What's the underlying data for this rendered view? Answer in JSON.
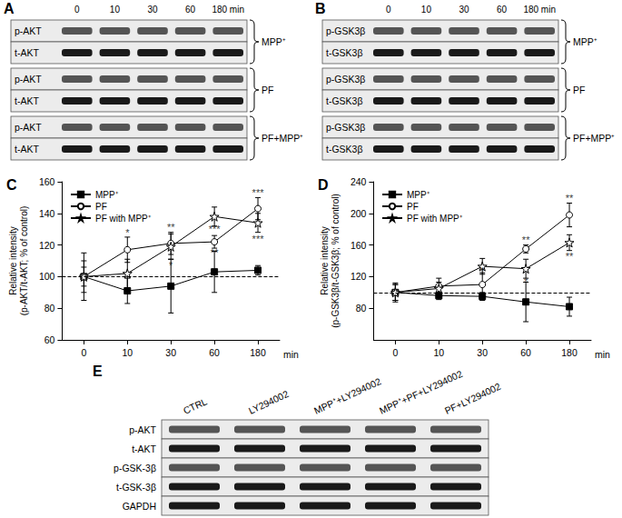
{
  "panels": {
    "A": {
      "label": "A",
      "times": [
        "0",
        "10",
        "30",
        "60",
        "180 min"
      ],
      "groups": [
        {
          "name": "MPP⁺",
          "rows": [
            "p-AKT",
            "t-AKT"
          ]
        },
        {
          "name": "PF",
          "rows": [
            "p-AKT",
            "t-AKT"
          ]
        },
        {
          "name": "PF+MPP⁺",
          "rows": [
            "p-AKT",
            "t-AKT"
          ]
        }
      ]
    },
    "B": {
      "label": "B",
      "times": [
        "0",
        "10",
        "30",
        "60",
        "180 min"
      ],
      "groups": [
        {
          "name": "MPP⁺",
          "rows": [
            "p-GSK3β",
            "t-GSK3β"
          ]
        },
        {
          "name": "PF",
          "rows": [
            "p-GSK3β",
            "t-GSK3β"
          ]
        },
        {
          "name": "PF+MPP⁺",
          "rows": [
            "p-GSK3β",
            "t-GSK3β"
          ]
        }
      ]
    },
    "E": {
      "label": "E",
      "lanes": [
        "CTRL",
        "LY294002",
        "MPP⁺+LY294002",
        "MPP⁺+PF+LY294002",
        "PF+LY294002"
      ],
      "rows": [
        "p-AKT",
        "t-AKT",
        "p-GSK-3β",
        "t-GSK-3β",
        "GAPDH"
      ]
    }
  },
  "chart_data": [
    {
      "label": "C",
      "type": "line",
      "ylabel": "Relative intensity\n(p-AKT/t-AKT; % of control)",
      "xlabel": "min",
      "categories": [
        "0",
        "10",
        "30",
        "60",
        "180"
      ],
      "ylim": [
        60,
        160
      ],
      "yticks": [
        60,
        80,
        100,
        120,
        140,
        160
      ],
      "hline": 100,
      "legend": "upper left",
      "series": [
        {
          "name": "MPP⁺",
          "color": "#000000",
          "marker": "square",
          "values": [
            100,
            91,
            94,
            103,
            104
          ],
          "errors": [
            15,
            8,
            17,
            13,
            3
          ]
        },
        {
          "name": "PF",
          "color": "#000000",
          "marker": "open circle",
          "values": [
            100,
            117,
            121,
            122,
            143
          ],
          "errors": [
            6,
            8,
            7,
            4,
            7
          ]
        },
        {
          "name": "PF with MPP⁺",
          "color": "#000000",
          "marker": "open star",
          "values": [
            100,
            102,
            119,
            138,
            134
          ],
          "errors": [
            10,
            9,
            8,
            6,
            6
          ]
        }
      ],
      "annotations": [
        {
          "x": "10",
          "y": 128,
          "text": "*"
        },
        {
          "x": "30",
          "y": 131,
          "text": "**"
        },
        {
          "x": "30",
          "y": 107,
          "text": "*"
        },
        {
          "x": "60",
          "y": 130,
          "text": "***"
        },
        {
          "x": "60",
          "y": 115,
          "text": "**"
        },
        {
          "x": "180",
          "y": 153,
          "text": "***"
        },
        {
          "x": "180",
          "y": 124,
          "text": "***"
        }
      ]
    },
    {
      "label": "D",
      "type": "line",
      "ylabel": "Relative intensity\n(p-GSK3β/t-GSK3β; % of control)",
      "xlabel": "min",
      "categories": [
        "0",
        "10",
        "30",
        "60",
        "180"
      ],
      "ylim": [
        40,
        240
      ],
      "yticks": [
        80,
        120,
        160,
        200,
        240
      ],
      "hline": 100,
      "legend": "upper left",
      "series": [
        {
          "name": "MPP⁺",
          "color": "#000000",
          "marker": "square",
          "values": [
            100,
            96,
            95,
            88,
            82
          ],
          "errors": [
            12,
            5,
            5,
            25,
            12
          ]
        },
        {
          "name": "PF",
          "color": "#000000",
          "marker": "open circle",
          "values": [
            100,
            108,
            110,
            155,
            198
          ],
          "errors": [
            10,
            10,
            15,
            5,
            15
          ]
        },
        {
          "name": "PF with MPP⁺",
          "color": "#000000",
          "marker": "open star",
          "values": [
            100,
            105,
            133,
            130,
            163
          ],
          "errors": [
            10,
            8,
            10,
            12,
            10
          ]
        }
      ],
      "annotations": [
        {
          "x": "30",
          "y": 127,
          "text": "*"
        },
        {
          "x": "60",
          "y": 166,
          "text": "**"
        },
        {
          "x": "60",
          "y": 113,
          "text": "*"
        },
        {
          "x": "180",
          "y": 219,
          "text": "**"
        },
        {
          "x": "180",
          "y": 146,
          "text": "**"
        }
      ]
    }
  ]
}
